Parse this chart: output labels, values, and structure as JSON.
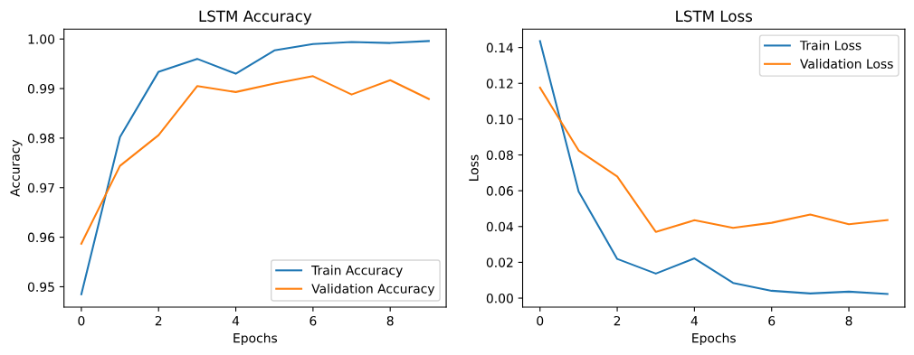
{
  "chart_data": [
    {
      "type": "line",
      "title": "LSTM Accuracy",
      "xlabel": "Epochs",
      "ylabel": "Accuracy",
      "x": [
        0,
        1,
        2,
        3,
        4,
        5,
        6,
        7,
        8,
        9
      ],
      "series": [
        {
          "name": "Train Accuracy",
          "color": "#1f77b4",
          "values": [
            0.9485,
            0.9802,
            0.9934,
            0.996,
            0.993,
            0.9977,
            0.999,
            0.9994,
            0.9992,
            0.9996
          ]
        },
        {
          "name": "Validation Accuracy",
          "color": "#ff7f0e",
          "values": [
            0.9587,
            0.9744,
            0.9806,
            0.9905,
            0.9893,
            0.991,
            0.9925,
            0.9888,
            0.9917,
            0.9879
          ]
        }
      ],
      "xlim": [
        -0.45,
        9.45
      ],
      "xticks": [
        0,
        2,
        4,
        6,
        8
      ],
      "ylim": [
        0.9459,
        1.002
      ],
      "yticks": [
        {
          "value": 0.95,
          "label": "0.95"
        },
        {
          "value": 0.96,
          "label": "0.96"
        },
        {
          "value": 0.97,
          "label": "0.97"
        },
        {
          "value": 0.98,
          "label": "0.98"
        },
        {
          "value": 0.99,
          "label": "0.99"
        },
        {
          "value": 1.0,
          "label": "1.00"
        }
      ],
      "legend": "lower right",
      "grid": false,
      "marker": "none",
      "line_style": "solid"
    },
    {
      "type": "line",
      "title": "LSTM Loss",
      "xlabel": "Epochs",
      "ylabel": "Loss",
      "x": [
        0,
        1,
        2,
        3,
        4,
        5,
        6,
        7,
        8,
        9
      ],
      "series": [
        {
          "name": "Train Loss",
          "color": "#1f77b4",
          "values": [
            0.1436,
            0.0596,
            0.0219,
            0.0137,
            0.0222,
            0.0085,
            0.0041,
            0.0026,
            0.0036,
            0.0023
          ]
        },
        {
          "name": "Validation Loss",
          "color": "#ff7f0e",
          "values": [
            0.1176,
            0.0825,
            0.068,
            0.037,
            0.0435,
            0.0393,
            0.0421,
            0.0467,
            0.0413,
            0.0436
          ]
        }
      ],
      "xlim": [
        -0.45,
        9.45
      ],
      "xticks": [
        0,
        2,
        4,
        6,
        8
      ],
      "ylim": [
        -0.005,
        0.1503
      ],
      "yticks": [
        {
          "value": 0.0,
          "label": "0.00"
        },
        {
          "value": 0.02,
          "label": "0.02"
        },
        {
          "value": 0.04,
          "label": "0.04"
        },
        {
          "value": 0.06,
          "label": "0.06"
        },
        {
          "value": 0.08,
          "label": "0.08"
        },
        {
          "value": 0.1,
          "label": "0.10"
        },
        {
          "value": 0.12,
          "label": "0.12"
        },
        {
          "value": 0.14,
          "label": "0.14"
        }
      ],
      "legend": "upper right",
      "grid": false,
      "marker": "none",
      "line_style": "solid"
    }
  ]
}
